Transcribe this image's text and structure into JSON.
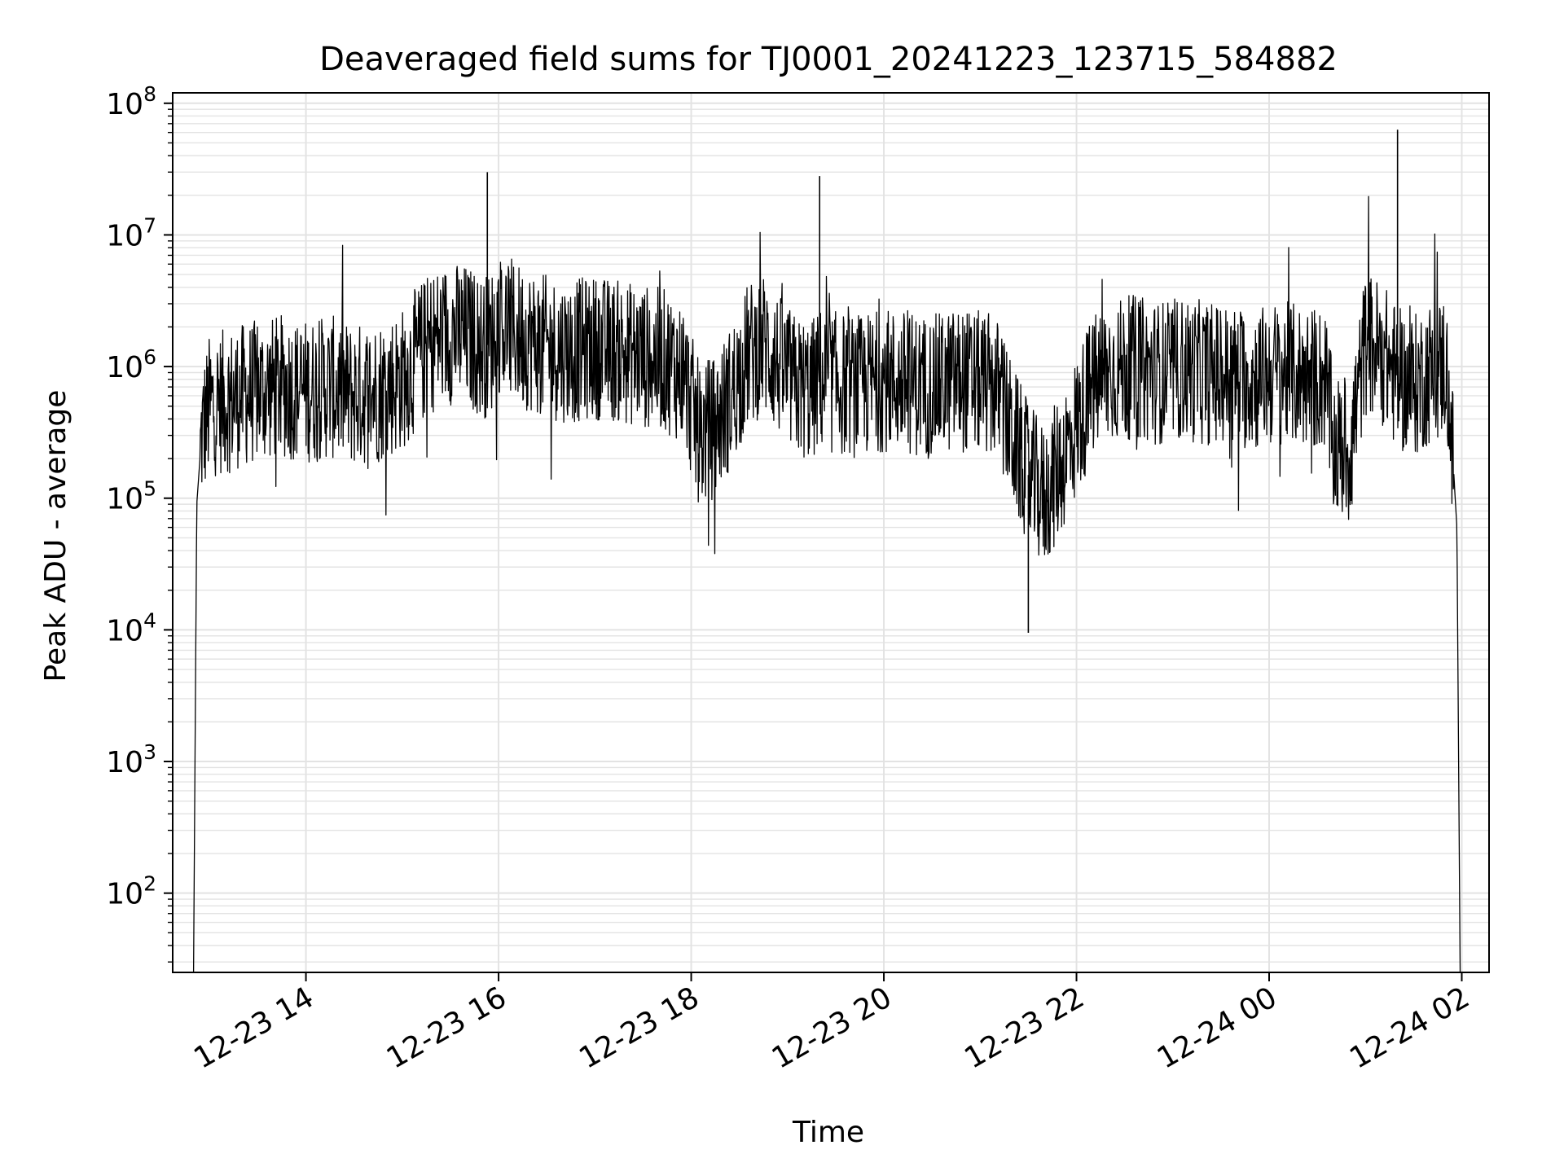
{
  "chart_data": {
    "type": "line",
    "title": "Deaveraged field sums for TJ0001_20241223_123715_584882",
    "xlabel": "Time",
    "ylabel": "Peak ADU - average",
    "yscale": "log",
    "ylim": [
      25,
      120000000
    ],
    "xlim": [
      "2024-12-23 12:37",
      "2024-12-24 02:17"
    ],
    "x_ticks": [
      "12-23 14",
      "12-23 16",
      "12-23 18",
      "12-23 20",
      "12-23 22",
      "12-24 00",
      "12-24 02"
    ],
    "y_ticks": [
      {
        "base": "10",
        "exp": "2",
        "value": 100
      },
      {
        "base": "10",
        "exp": "3",
        "value": 1000
      },
      {
        "base": "10",
        "exp": "4",
        "value": 10000
      },
      {
        "base": "10",
        "exp": "5",
        "value": 100000
      },
      {
        "base": "10",
        "exp": "6",
        "value": 1000000
      },
      {
        "base": "10",
        "exp": "7",
        "value": 10000000
      },
      {
        "base": "10",
        "exp": "8",
        "value": 100000000
      }
    ],
    "grid": true,
    "line_color": "#000000",
    "grid_color": "#e3e3e3",
    "series": [
      {
        "x": [
          "2024-12-23 12:50",
          "2024-12-23 12:52",
          "2024-12-23 12:55",
          "2024-12-23 13:00",
          "2024-12-23 13:10",
          "2024-12-23 13:20",
          "2024-12-23 13:30",
          "2024-12-23 13:45",
          "2024-12-23 14:00",
          "2024-12-23 14:15",
          "2024-12-23 14:30",
          "2024-12-23 14:45",
          "2024-12-23 15:00",
          "2024-12-23 15:10",
          "2024-12-23 15:20",
          "2024-12-23 15:30",
          "2024-12-23 15:40",
          "2024-12-23 15:50",
          "2024-12-23 15:55",
          "2024-12-23 16:00",
          "2024-12-23 16:10",
          "2024-12-23 16:20",
          "2024-12-23 16:30",
          "2024-12-23 16:45",
          "2024-12-23 17:00",
          "2024-12-23 17:15",
          "2024-12-23 17:30",
          "2024-12-23 17:45",
          "2024-12-23 17:55",
          "2024-12-23 18:05",
          "2024-12-23 18:15",
          "2024-12-23 18:25",
          "2024-12-23 18:35",
          "2024-12-23 18:45",
          "2024-12-23 18:55",
          "2024-12-23 19:05",
          "2024-12-23 19:15",
          "2024-12-23 19:20",
          "2024-12-23 19:30",
          "2024-12-23 19:45",
          "2024-12-23 20:00",
          "2024-12-23 20:15",
          "2024-12-23 20:30",
          "2024-12-23 20:45",
          "2024-12-23 21:00",
          "2024-12-23 21:10",
          "2024-12-23 21:20",
          "2024-12-23 21:30",
          "2024-12-23 21:40",
          "2024-12-23 21:50",
          "2024-12-23 22:00",
          "2024-12-23 22:10",
          "2024-12-23 22:20",
          "2024-12-23 22:35",
          "2024-12-23 22:50",
          "2024-12-23 23:05",
          "2024-12-23 23:20",
          "2024-12-23 23:35",
          "2024-12-23 23:50",
          "2024-12-24 00:05",
          "2024-12-24 00:20",
          "2024-12-24 00:35",
          "2024-12-24 00:40",
          "2024-12-24 00:50",
          "2024-12-24 01:00",
          "2024-12-24 01:10",
          "2024-12-24 01:20",
          "2024-12-24 01:30",
          "2024-12-24 01:40",
          "2024-12-24 01:45",
          "2024-12-24 01:50",
          "2024-12-24 01:54",
          "2024-12-24 01:57",
          "2024-12-24 01:59"
        ],
        "values": [
          25,
          90000,
          300000,
          500000,
          550000,
          600000,
          650000,
          700000,
          650000,
          700000,
          600000,
          650000,
          800000,
          1200000,
          1600000,
          1800000,
          1700000,
          1400000,
          1500000,
          2200000,
          1800000,
          1600000,
          1400000,
          1300000,
          1400000,
          1300000,
          1200000,
          1100000,
          900000,
          300000,
          350000,
          600000,
          1200000,
          1500000,
          1000000,
          700000,
          650000,
          800000,
          750000,
          700000,
          800000,
          750000,
          700000,
          800000,
          750000,
          700000,
          300000,
          150000,
          100000,
          180000,
          350000,
          700000,
          900000,
          1000000,
          900000,
          950000,
          900000,
          850000,
          800000,
          900000,
          850000,
          800000,
          250000,
          220000,
          1500000,
          1300000,
          800000,
          700000,
          900000,
          900000,
          1100000,
          250000,
          60000,
          25
        ]
      }
    ],
    "spikes": [
      {
        "x": "2024-12-23 15:53",
        "y": 30000000
      },
      {
        "x": "2024-12-23 19:20",
        "y": 28000000
      },
      {
        "x": "2024-12-24 01:20",
        "y": 63000000
      },
      {
        "x": "2024-12-23 21:30",
        "y": 9500
      }
    ]
  }
}
